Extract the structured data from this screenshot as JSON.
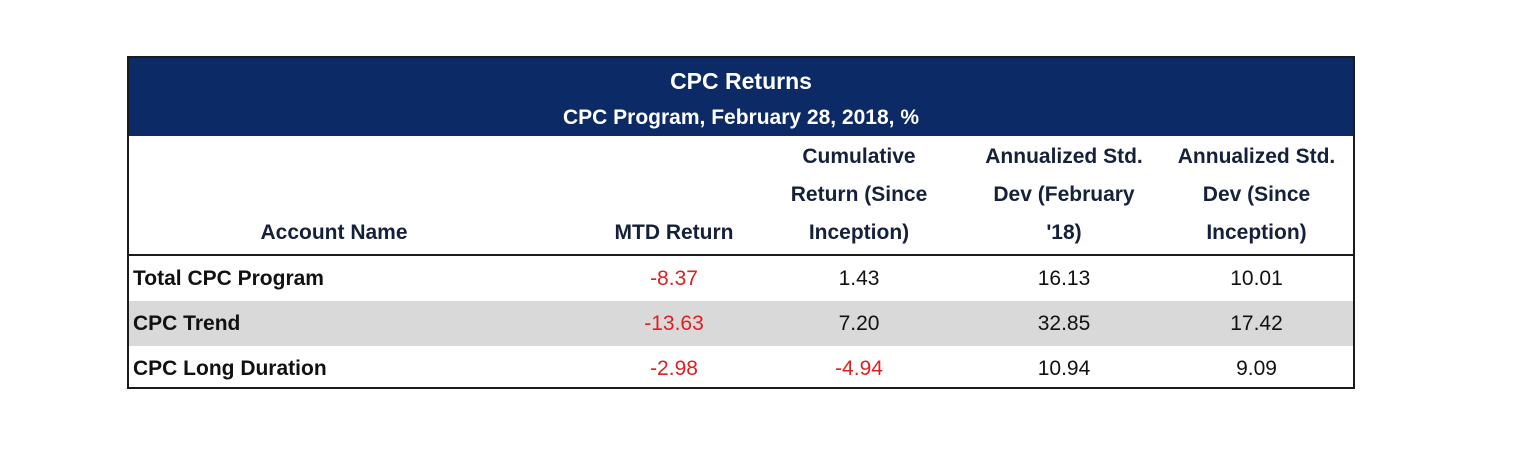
{
  "table": {
    "title": "CPC Returns",
    "subtitle": "CPC Program, February 28, 2018, %",
    "columns": {
      "account_name": "Account Name",
      "mtd_return": "MTD Return",
      "cumulative_l1": "Cumulative",
      "cumulative_l2": "Return (Since",
      "cumulative_l3": "Inception)",
      "std_feb_l1": "Annualized Std.",
      "std_feb_l2": "Dev (February",
      "std_feb_l3": "'18)",
      "std_incep_l1": "Annualized Std.",
      "std_incep_l2": "Dev (Since",
      "std_incep_l3": "Inception)"
    },
    "rows": [
      {
        "name": "Total CPC Program",
        "mtd": "-8.37",
        "cumulative": "1.43",
        "std_feb": "16.13",
        "std_incep": "10.01"
      },
      {
        "name": "CPC Trend",
        "mtd": "-13.63",
        "cumulative": "7.20",
        "std_feb": "32.85",
        "std_incep": "17.42"
      },
      {
        "name": "CPC Long Duration",
        "mtd": "-2.98",
        "cumulative": "-4.94",
        "std_feb": "10.94",
        "std_incep": "9.09"
      }
    ],
    "colors": {
      "header_band": "#0c2a66",
      "negative": "#e02020",
      "alt_row": "#d9d9d9"
    }
  }
}
